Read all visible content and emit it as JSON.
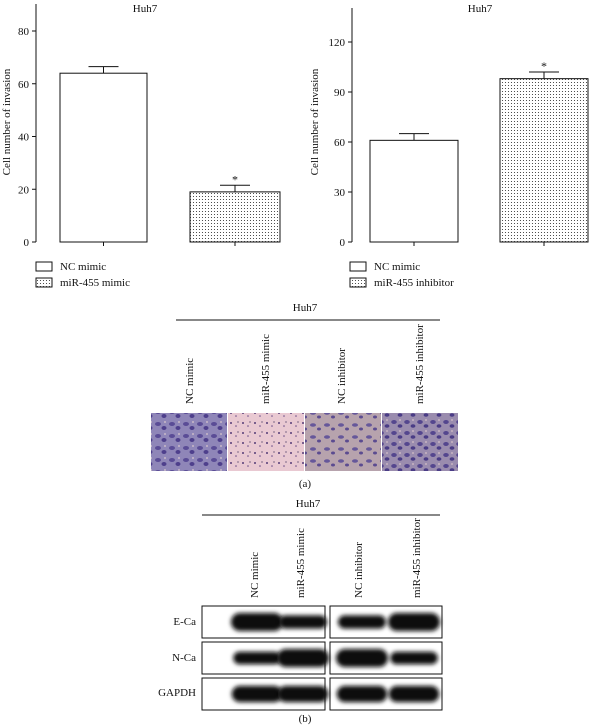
{
  "chart_data": [
    {
      "type": "bar",
      "title": "Huh7",
      "ylabel": "Cell number of invasion",
      "xlabel": "",
      "ylim": [
        0,
        80
      ],
      "yticks": [
        0,
        20,
        40,
        60,
        80
      ],
      "categories": [
        "NC mimic",
        "miR-455 mimic"
      ],
      "values": [
        64,
        19
      ],
      "errors": [
        2.5,
        2.5
      ],
      "significance": [
        "",
        "*"
      ],
      "fills": [
        "solid-white",
        "dotted"
      ],
      "legend": [
        "NC mimic",
        "miR-455 mimic"
      ],
      "legend_position": "bottom-left"
    },
    {
      "type": "bar",
      "title": "Huh7",
      "ylabel": "Cell number of invasion",
      "xlabel": "",
      "ylim": [
        0,
        120
      ],
      "yticks": [
        0,
        30,
        60,
        90,
        120
      ],
      "categories": [
        "NC mimic",
        "miR-455 inhibitor"
      ],
      "values": [
        61,
        98
      ],
      "errors": [
        4,
        4
      ],
      "significance": [
        "",
        "*"
      ],
      "fills": [
        "solid-white",
        "dotted"
      ],
      "legend": [
        "NC mimic",
        "miR-455 inhibitor"
      ],
      "legend_position": "bottom-left"
    }
  ],
  "panel_a": {
    "group_label": "Huh7",
    "lanes": [
      "NC mimic",
      "miR-455 mimic",
      "NC inhibitor",
      "miR-455 inhibitor"
    ],
    "caption": "(a)"
  },
  "panel_b": {
    "group_label": "Huh7",
    "lanes": [
      "NC mimic",
      "miR-455 mimic",
      "NC inhibitor",
      "miR-455 inhibitor"
    ],
    "rows": [
      {
        "label": "E-Ca",
        "intensity": [
          1.0,
          0.6,
          0.6,
          1.0
        ]
      },
      {
        "label": "N-Ca",
        "intensity": [
          0.55,
          1.0,
          1.0,
          0.55
        ]
      },
      {
        "label": "GAPDH",
        "intensity": [
          0.85,
          0.85,
          0.85,
          0.85
        ]
      }
    ],
    "caption": "(b)"
  }
}
